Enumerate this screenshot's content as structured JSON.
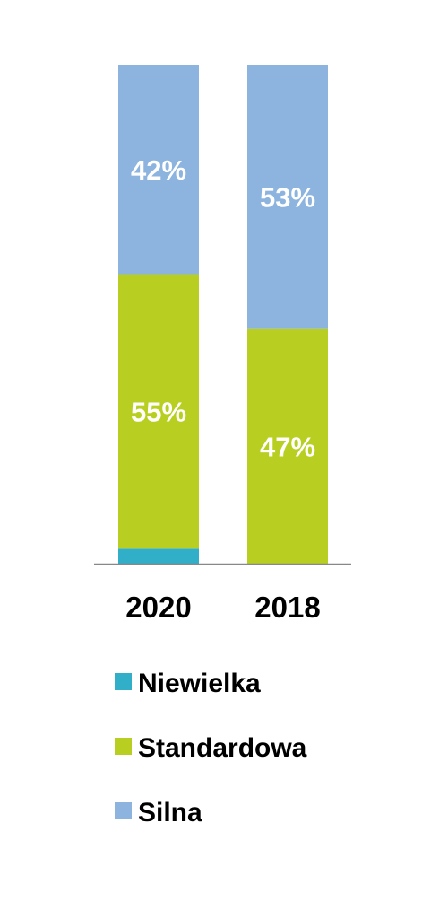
{
  "chart_data": {
    "type": "bar",
    "stacked": true,
    "categories": [
      "2020",
      "2018"
    ],
    "series": [
      {
        "name": "Niewielka",
        "values": [
          3,
          0
        ],
        "value_labels": [
          "",
          ""
        ],
        "color": "#31aec8"
      },
      {
        "name": "Standardowa",
        "values": [
          55,
          47
        ],
        "value_labels": [
          "55%",
          "47%"
        ],
        "color": "#b8cf22"
      },
      {
        "name": "Silna",
        "values": [
          42,
          53
        ],
        "value_labels": [
          "42%",
          "53%"
        ],
        "color": "#8db4de"
      }
    ],
    "ylim": [
      0,
      100
    ],
    "title": "",
    "xlabel": "",
    "ylabel": "",
    "grid": false,
    "legend_position": "bottom",
    "axis_color": "#888888"
  }
}
